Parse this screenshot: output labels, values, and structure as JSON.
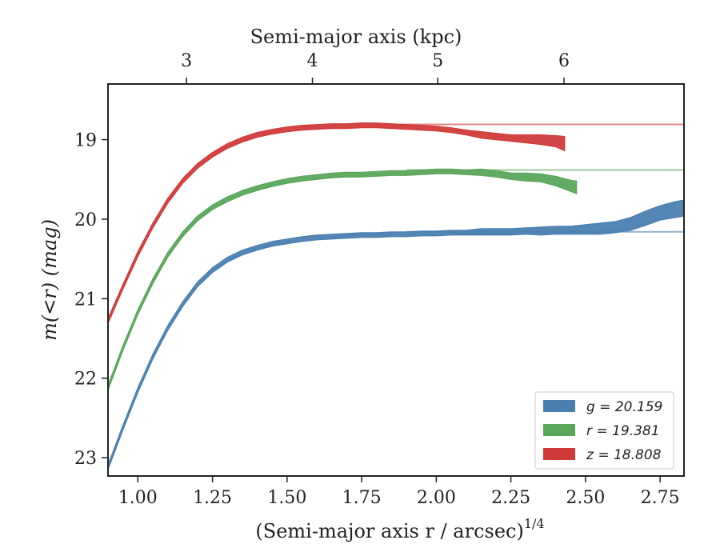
{
  "chart_data": {
    "type": "area",
    "xlabel": "(Semi-major axis r / arcsec)",
    "xlabel_exp": "1/4",
    "x2label": "Semi-major axis (kpc)",
    "ylabel": "m(<r) (mag)",
    "xlim": [
      0.9,
      2.83
    ],
    "ylim": [
      23.23,
      18.3
    ],
    "x_ticks": [
      1.0,
      1.25,
      1.5,
      1.75,
      2.0,
      2.25,
      2.5,
      2.75
    ],
    "x_tick_labels": [
      "1.00",
      "1.25",
      "1.50",
      "1.75",
      "2.00",
      "2.25",
      "2.50",
      "2.75"
    ],
    "y_ticks": [
      19,
      20,
      21,
      22,
      23
    ],
    "y_tick_labels": [
      "19",
      "20",
      "21",
      "22",
      "23"
    ],
    "x2_ticks": [
      3,
      4,
      5,
      6
    ],
    "x2_tick_labels": [
      "3",
      "4",
      "5",
      "6"
    ],
    "x2_tick_positions_bottom_units": [
      1.163,
      1.585,
      2.005,
      2.428
    ],
    "legend_position": "lower-right",
    "series": [
      {
        "key": "g",
        "legend_label": "g = 20.159",
        "color": "#4a7fb0",
        "asymptote": 20.159,
        "x": [
          0.9,
          0.95,
          1.0,
          1.05,
          1.1,
          1.15,
          1.2,
          1.25,
          1.3,
          1.35,
          1.4,
          1.45,
          1.5,
          1.55,
          1.6,
          1.65,
          1.7,
          1.75,
          1.8,
          1.85,
          1.9,
          1.95,
          2.0,
          2.05,
          2.1,
          2.15,
          2.2,
          2.25,
          2.3,
          2.35,
          2.4,
          2.45,
          2.5,
          2.55,
          2.6,
          2.65,
          2.7,
          2.75,
          2.8,
          2.83
        ],
        "y": [
          23.12,
          22.62,
          22.15,
          21.73,
          21.37,
          21.07,
          20.82,
          20.64,
          20.51,
          20.42,
          20.36,
          20.31,
          20.28,
          20.25,
          20.23,
          20.22,
          20.21,
          20.2,
          20.2,
          20.19,
          20.19,
          20.18,
          20.18,
          20.17,
          20.17,
          20.16,
          20.16,
          20.16,
          20.15,
          20.15,
          20.14,
          20.14,
          20.13,
          20.12,
          20.1,
          20.06,
          19.99,
          19.92,
          19.88,
          19.86
        ],
        "err": [
          0.03,
          0.03,
          0.03,
          0.03,
          0.03,
          0.03,
          0.03,
          0.03,
          0.03,
          0.03,
          0.03,
          0.03,
          0.03,
          0.03,
          0.03,
          0.03,
          0.03,
          0.03,
          0.03,
          0.03,
          0.03,
          0.03,
          0.03,
          0.03,
          0.03,
          0.04,
          0.04,
          0.04,
          0.04,
          0.05,
          0.05,
          0.05,
          0.06,
          0.07,
          0.07,
          0.08,
          0.09,
          0.09,
          0.1,
          0.1
        ]
      },
      {
        "key": "r",
        "legend_label": "r = 19.381",
        "color": "#5aa65a",
        "asymptote": 19.381,
        "x": [
          0.9,
          0.95,
          1.0,
          1.05,
          1.1,
          1.15,
          1.2,
          1.25,
          1.3,
          1.35,
          1.4,
          1.45,
          1.5,
          1.55,
          1.6,
          1.65,
          1.7,
          1.75,
          1.8,
          1.85,
          1.9,
          1.95,
          2.0,
          2.05,
          2.1,
          2.15,
          2.2,
          2.25,
          2.3,
          2.35,
          2.4,
          2.45,
          2.47
        ],
        "y": [
          22.12,
          21.62,
          21.17,
          20.78,
          20.45,
          20.19,
          19.99,
          19.85,
          19.75,
          19.67,
          19.61,
          19.56,
          19.52,
          19.49,
          19.47,
          19.45,
          19.44,
          19.44,
          19.43,
          19.42,
          19.42,
          19.41,
          19.4,
          19.4,
          19.41,
          19.41,
          19.43,
          19.46,
          19.47,
          19.48,
          19.52,
          19.58,
          19.6
        ],
        "err": [
          0.03,
          0.03,
          0.03,
          0.03,
          0.03,
          0.03,
          0.03,
          0.03,
          0.03,
          0.03,
          0.03,
          0.03,
          0.03,
          0.03,
          0.03,
          0.03,
          0.03,
          0.03,
          0.03,
          0.03,
          0.03,
          0.03,
          0.03,
          0.03,
          0.03,
          0.04,
          0.04,
          0.04,
          0.05,
          0.05,
          0.06,
          0.07,
          0.08
        ]
      },
      {
        "key": "z",
        "legend_label": "z = 18.808",
        "color": "#d13a3a",
        "asymptote": 18.808,
        "x": [
          0.9,
          0.95,
          1.0,
          1.05,
          1.1,
          1.15,
          1.2,
          1.25,
          1.3,
          1.35,
          1.4,
          1.45,
          1.5,
          1.55,
          1.6,
          1.65,
          1.7,
          1.75,
          1.8,
          1.85,
          1.9,
          1.95,
          2.0,
          2.05,
          2.1,
          2.15,
          2.2,
          2.25,
          2.3,
          2.35,
          2.4,
          2.43
        ],
        "y": [
          21.28,
          20.85,
          20.44,
          20.08,
          19.77,
          19.52,
          19.33,
          19.19,
          19.08,
          19.0,
          18.94,
          18.9,
          18.87,
          18.85,
          18.84,
          18.83,
          18.83,
          18.82,
          18.82,
          18.83,
          18.84,
          18.85,
          18.86,
          18.88,
          18.91,
          18.94,
          18.96,
          18.98,
          18.99,
          19.0,
          19.02,
          19.05
        ],
        "err": [
          0.03,
          0.03,
          0.03,
          0.03,
          0.03,
          0.03,
          0.03,
          0.03,
          0.03,
          0.03,
          0.03,
          0.03,
          0.03,
          0.03,
          0.03,
          0.03,
          0.03,
          0.03,
          0.03,
          0.03,
          0.03,
          0.03,
          0.03,
          0.03,
          0.03,
          0.04,
          0.04,
          0.04,
          0.05,
          0.06,
          0.07,
          0.09
        ]
      }
    ]
  }
}
